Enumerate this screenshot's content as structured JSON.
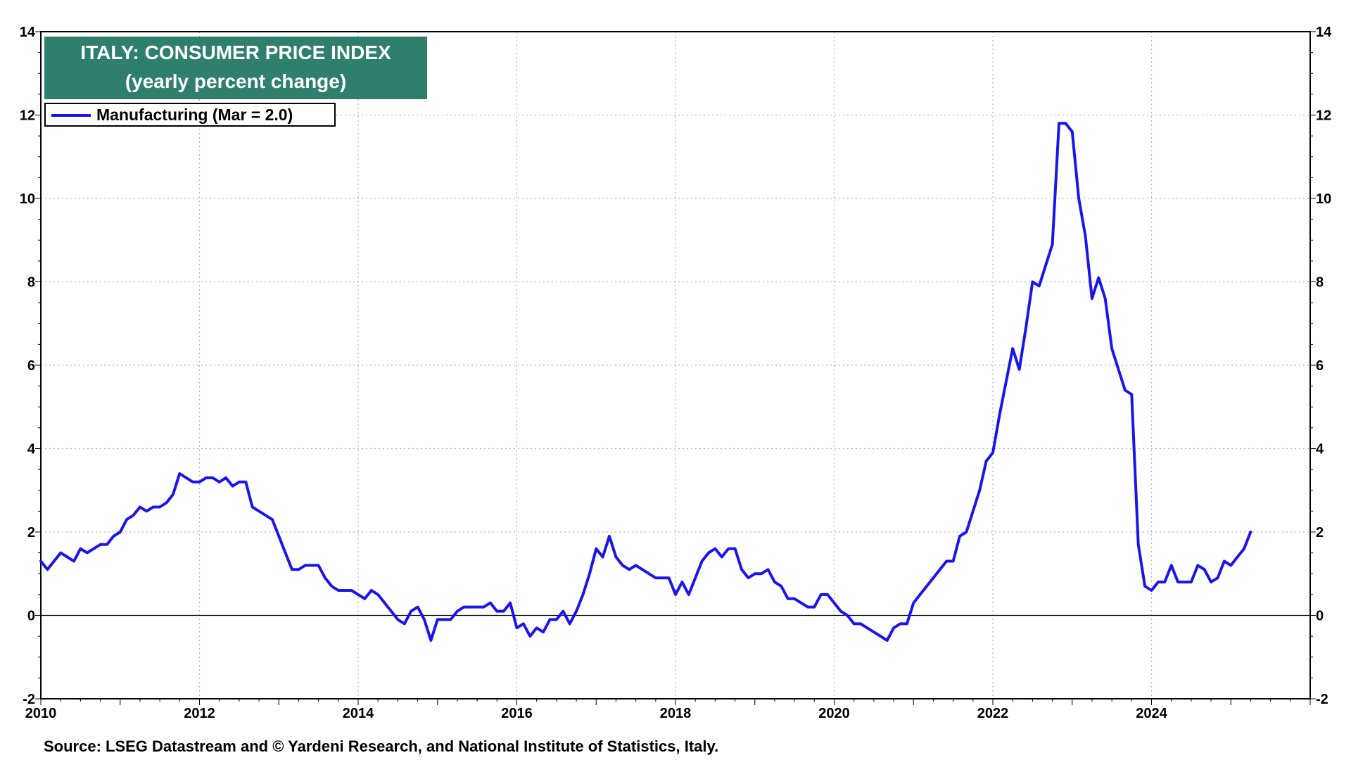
{
  "chart_data": {
    "type": "line",
    "title": "ITALY: CONSUMER PRICE INDEX",
    "subtitle": "(yearly percent change)",
    "legend": "top-left",
    "grid": true,
    "xlim": [
      2010,
      2026
    ],
    "ylim": [
      -2,
      14
    ],
    "x_ticks": [
      "2010",
      "2012",
      "2014",
      "2016",
      "2018",
      "2020",
      "2022",
      "2024"
    ],
    "y_ticks": [
      "-2",
      "0",
      "2",
      "4",
      "6",
      "8",
      "10",
      "12",
      "14"
    ],
    "series": [
      {
        "name": "Manufacturing",
        "label": "Manufacturing  (Mar = 2.0)",
        "color": "#1a14f0",
        "start": "2010-01",
        "values": [
          1.3,
          1.1,
          1.3,
          1.5,
          1.4,
          1.3,
          1.6,
          1.5,
          1.6,
          1.7,
          1.7,
          1.9,
          2.0,
          2.3,
          2.4,
          2.6,
          2.5,
          2.6,
          2.6,
          2.7,
          2.9,
          3.4,
          3.3,
          3.2,
          3.2,
          3.3,
          3.3,
          3.2,
          3.3,
          3.1,
          3.2,
          3.2,
          2.6,
          2.5,
          2.4,
          2.3,
          1.9,
          1.5,
          1.1,
          1.1,
          1.2,
          1.2,
          1.2,
          0.9,
          0.7,
          0.6,
          0.6,
          0.6,
          0.5,
          0.4,
          0.6,
          0.5,
          0.3,
          0.1,
          -0.1,
          -0.2,
          0.1,
          0.2,
          -0.1,
          -0.6,
          -0.1,
          -0.1,
          -0.1,
          0.1,
          0.2,
          0.2,
          0.2,
          0.2,
          0.3,
          0.1,
          0.1,
          0.3,
          -0.3,
          -0.2,
          -0.5,
          -0.3,
          -0.4,
          -0.1,
          -0.1,
          0.1,
          -0.2,
          0.1,
          0.5,
          1.0,
          1.6,
          1.4,
          1.9,
          1.4,
          1.2,
          1.1,
          1.2,
          1.1,
          1.0,
          0.9,
          0.9,
          0.9,
          0.5,
          0.8,
          0.5,
          0.9,
          1.3,
          1.5,
          1.6,
          1.4,
          1.6,
          1.6,
          1.1,
          0.9,
          1.0,
          1.0,
          1.1,
          0.8,
          0.7,
          0.4,
          0.4,
          0.3,
          0.2,
          0.2,
          0.5,
          0.5,
          0.3,
          0.1,
          0.0,
          -0.2,
          -0.2,
          -0.3,
          -0.4,
          -0.5,
          -0.6,
          -0.3,
          -0.2,
          -0.2,
          0.3,
          0.5,
          0.7,
          0.9,
          1.1,
          1.3,
          1.3,
          1.9,
          2.0,
          2.5,
          3.0,
          3.7,
          3.9,
          4.8,
          5.6,
          6.4,
          5.9,
          6.9,
          8.0,
          7.9,
          8.4,
          8.9,
          11.8,
          11.8,
          11.6,
          10.0,
          9.1,
          7.6,
          8.1,
          7.6,
          6.4,
          5.9,
          5.4,
          5.3,
          1.7,
          0.7,
          0.6,
          0.8,
          0.8,
          1.2,
          0.8,
          0.8,
          0.8,
          1.2,
          1.1,
          0.8,
          0.9,
          1.3,
          1.2,
          1.4,
          1.6,
          2.0
        ]
      }
    ]
  },
  "legend_text": "Manufacturing  (Mar = 2.0)",
  "source": "Source: LSEG Datastream and © Yardeni Research, and National Institute of Statistics, Italy."
}
